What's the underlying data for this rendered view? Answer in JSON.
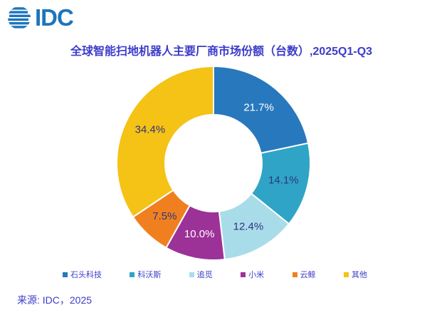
{
  "logo": {
    "text": "IDC",
    "color": "#1C75BC",
    "icon": "globe-icon"
  },
  "title": "全球智能扫地机器人主要厂商市场份额（台数）,2025Q1-Q3",
  "source": "来源: IDC，2025",
  "chart_data": {
    "type": "pie",
    "subtype": "donut",
    "title": "全球智能扫地机器人主要厂商市场份额（台数）,2025Q1-Q3",
    "categories": [
      "石头科技",
      "科沃斯",
      "追觅",
      "小米",
      "云鲸",
      "其他"
    ],
    "values": [
      21.7,
      14.1,
      12.4,
      10.0,
      7.5,
      34.4
    ],
    "labels": [
      "21.7%",
      "14.1%",
      "12.4%",
      "10.0%",
      "7.5%",
      "34.4%"
    ],
    "colors": [
      "#2878BD",
      "#2FA4C6",
      "#A9DCE9",
      "#9C3198",
      "#F0801F",
      "#F5C216"
    ],
    "label_colors": [
      "#FFFFFF",
      "#2E3580",
      "#2E3580",
      "#FFFFFF",
      "#2E3580",
      "#2E3580"
    ],
    "start_angle_deg": 0,
    "direction": "clockwise",
    "inner_radius_ratio": 0.5,
    "gap_stroke_color": "#FFFFFF",
    "legend_position": "bottom",
    "grid": false
  }
}
